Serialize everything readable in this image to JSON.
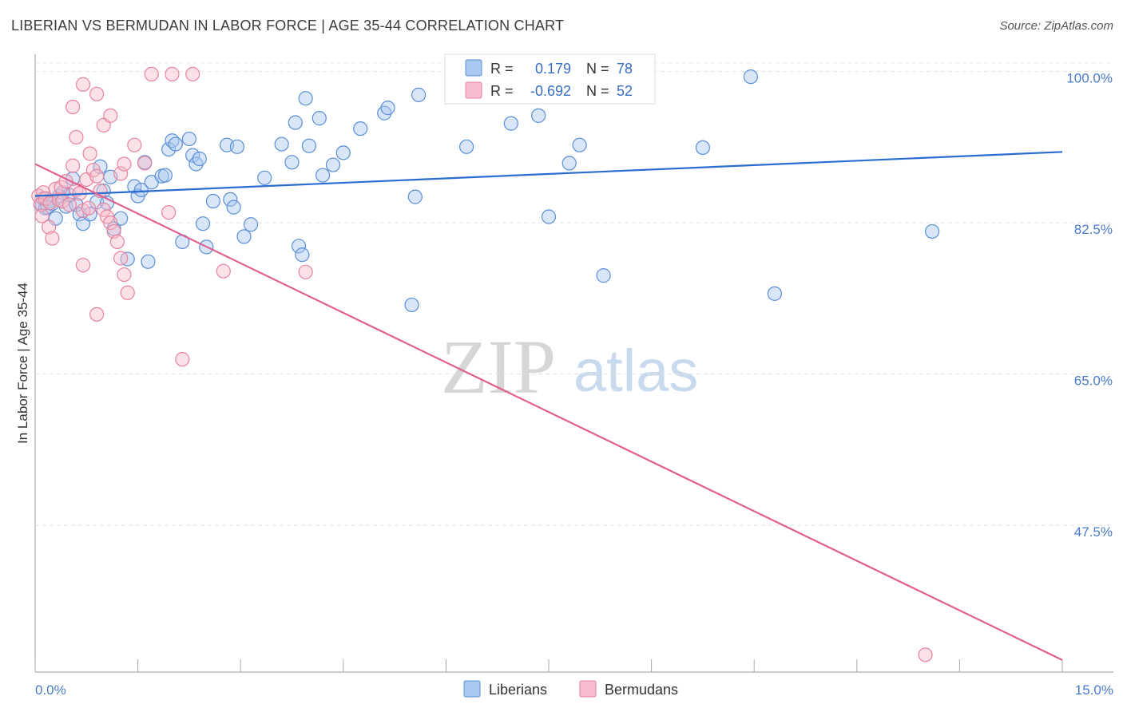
{
  "title": "LIBERIAN VS BERMUDAN IN LABOR FORCE | AGE 35-44 CORRELATION CHART",
  "source": "Source: ZipAtlas.com",
  "watermark": {
    "zip": "ZIP",
    "atlas": "atlas"
  },
  "colors": {
    "liberian_fill": "#a9c8f0",
    "liberian_stroke": "#5b8fd6",
    "liberian_line": "#2a6ccf",
    "bermudan_fill": "#f7bccd",
    "bermudan_stroke": "#e7849f",
    "bermudan_line": "#e0608f"
  },
  "legend_top": {
    "rows": [
      {
        "r_label": "R =",
        "r_value": "0.179",
        "n_label": "N =",
        "n_value": "78"
      },
      {
        "r_label": "R =",
        "r_value": "-0.692",
        "n_label": "N =",
        "n_value": "52"
      }
    ]
  },
  "chart_data": {
    "type": "scatter",
    "title": "LIBERIAN VS BERMUDAN IN LABOR FORCE | AGE 35-44 CORRELATION CHART",
    "xlabel": "",
    "ylabel": "In Labor Force | Age 35-44",
    "xlim": [
      0,
      15
    ],
    "ylim": [
      30.5,
      102
    ],
    "x_tick_labels": [
      "0.0%",
      "15.0%"
    ],
    "y_ticks": [
      47.5,
      65.0,
      82.5,
      100.0
    ],
    "y_tick_labels": [
      "47.5%",
      "65.0%",
      "82.5%",
      "100.0%"
    ],
    "grid": true,
    "legend_position": "bottom-center",
    "series": [
      {
        "name": "Liberians",
        "r": 0.179,
        "n": 78,
        "trend": {
          "x": [
            0,
            15
          ],
          "y": [
            85.6,
            90.7
          ]
        },
        "points": [
          [
            0.1,
            84.6
          ],
          [
            0.12,
            85.3
          ],
          [
            0.15,
            84.2
          ],
          [
            0.2,
            85.0
          ],
          [
            0.25,
            84.7
          ],
          [
            0.3,
            83.0
          ],
          [
            0.35,
            85.6
          ],
          [
            0.4,
            86.0
          ],
          [
            0.45,
            84.4
          ],
          [
            0.55,
            87.6
          ],
          [
            0.6,
            84.6
          ],
          [
            0.65,
            83.5
          ],
          [
            0.7,
            82.4
          ],
          [
            0.8,
            83.5
          ],
          [
            0.9,
            84.9
          ],
          [
            0.95,
            89.0
          ],
          [
            1.0,
            86.2
          ],
          [
            1.05,
            84.8
          ],
          [
            1.1,
            87.8
          ],
          [
            1.15,
            81.8
          ],
          [
            1.25,
            83.0
          ],
          [
            1.35,
            78.3
          ],
          [
            1.45,
            86.7
          ],
          [
            1.5,
            85.6
          ],
          [
            1.55,
            86.3
          ],
          [
            1.6,
            89.5
          ],
          [
            1.65,
            78.0
          ],
          [
            1.7,
            87.2
          ],
          [
            1.85,
            87.9
          ],
          [
            1.9,
            88.0
          ],
          [
            1.95,
            91.0
          ],
          [
            2.0,
            92.0
          ],
          [
            2.05,
            91.6
          ],
          [
            2.15,
            80.3
          ],
          [
            2.25,
            92.2
          ],
          [
            2.3,
            90.3
          ],
          [
            2.35,
            89.3
          ],
          [
            2.4,
            89.9
          ],
          [
            2.45,
            82.4
          ],
          [
            2.5,
            79.7
          ],
          [
            2.6,
            85.0
          ],
          [
            2.8,
            91.5
          ],
          [
            2.85,
            85.2
          ],
          [
            2.9,
            84.3
          ],
          [
            2.95,
            91.3
          ],
          [
            3.05,
            80.9
          ],
          [
            3.15,
            82.3
          ],
          [
            3.35,
            87.7
          ],
          [
            3.6,
            91.6
          ],
          [
            3.75,
            89.5
          ],
          [
            3.8,
            94.1
          ],
          [
            3.85,
            79.8
          ],
          [
            3.9,
            78.8
          ],
          [
            3.95,
            96.9
          ],
          [
            4.0,
            91.4
          ],
          [
            4.15,
            94.6
          ],
          [
            4.2,
            88.0
          ],
          [
            4.35,
            89.2
          ],
          [
            4.5,
            90.6
          ],
          [
            4.75,
            93.4
          ],
          [
            5.1,
            95.2
          ],
          [
            5.15,
            95.8
          ],
          [
            5.5,
            73.0
          ],
          [
            5.55,
            85.5
          ],
          [
            5.6,
            97.3
          ],
          [
            6.3,
            91.3
          ],
          [
            6.95,
            94.0
          ],
          [
            7.35,
            94.9
          ],
          [
            7.5,
            83.2
          ],
          [
            7.8,
            89.4
          ],
          [
            7.95,
            91.5
          ],
          [
            8.3,
            76.4
          ],
          [
            9.75,
            91.2
          ],
          [
            10.45,
            99.4
          ],
          [
            10.8,
            74.3
          ],
          [
            13.1,
            81.5
          ],
          [
            0.18,
            84.3
          ],
          [
            0.5,
            85.7
          ]
        ]
      },
      {
        "name": "Bermudans",
        "r": -0.692,
        "n": 52,
        "trend": {
          "x": [
            0,
            15
          ],
          "y": [
            89.3,
            31.9
          ]
        },
        "points": [
          [
            0.05,
            85.6
          ],
          [
            0.08,
            84.6
          ],
          [
            0.1,
            83.3
          ],
          [
            0.12,
            86.0
          ],
          [
            0.15,
            85.3
          ],
          [
            0.2,
            82.0
          ],
          [
            0.22,
            84.8
          ],
          [
            0.25,
            80.7
          ],
          [
            0.3,
            86.4
          ],
          [
            0.35,
            85.2
          ],
          [
            0.38,
            86.6
          ],
          [
            0.4,
            85.0
          ],
          [
            0.45,
            87.3
          ],
          [
            0.5,
            84.6
          ],
          [
            0.55,
            89.1
          ],
          [
            0.6,
            86.3
          ],
          [
            0.65,
            85.9
          ],
          [
            0.7,
            83.9
          ],
          [
            0.75,
            87.5
          ],
          [
            0.78,
            84.2
          ],
          [
            0.8,
            90.5
          ],
          [
            0.85,
            88.6
          ],
          [
            0.9,
            87.9
          ],
          [
            0.95,
            86.2
          ],
          [
            1.0,
            84.0
          ],
          [
            1.05,
            83.2
          ],
          [
            1.1,
            82.5
          ],
          [
            1.15,
            81.5
          ],
          [
            1.2,
            80.3
          ],
          [
            1.25,
            78.4
          ],
          [
            1.3,
            76.5
          ],
          [
            1.35,
            74.4
          ],
          [
            0.55,
            95.9
          ],
          [
            0.6,
            92.4
          ],
          [
            0.7,
            98.5
          ],
          [
            0.9,
            97.4
          ],
          [
            1.0,
            93.8
          ],
          [
            1.1,
            94.9
          ],
          [
            1.25,
            88.2
          ],
          [
            1.3,
            89.3
          ],
          [
            1.45,
            91.5
          ],
          [
            1.6,
            89.4
          ],
          [
            1.7,
            99.7
          ],
          [
            1.95,
            83.7
          ],
          [
            2.0,
            99.7
          ],
          [
            2.3,
            99.7
          ],
          [
            2.75,
            76.9
          ],
          [
            3.95,
            76.8
          ],
          [
            2.15,
            66.7
          ],
          [
            0.9,
            71.9
          ],
          [
            0.7,
            77.6
          ],
          [
            13.0,
            32.5
          ]
        ]
      }
    ]
  }
}
